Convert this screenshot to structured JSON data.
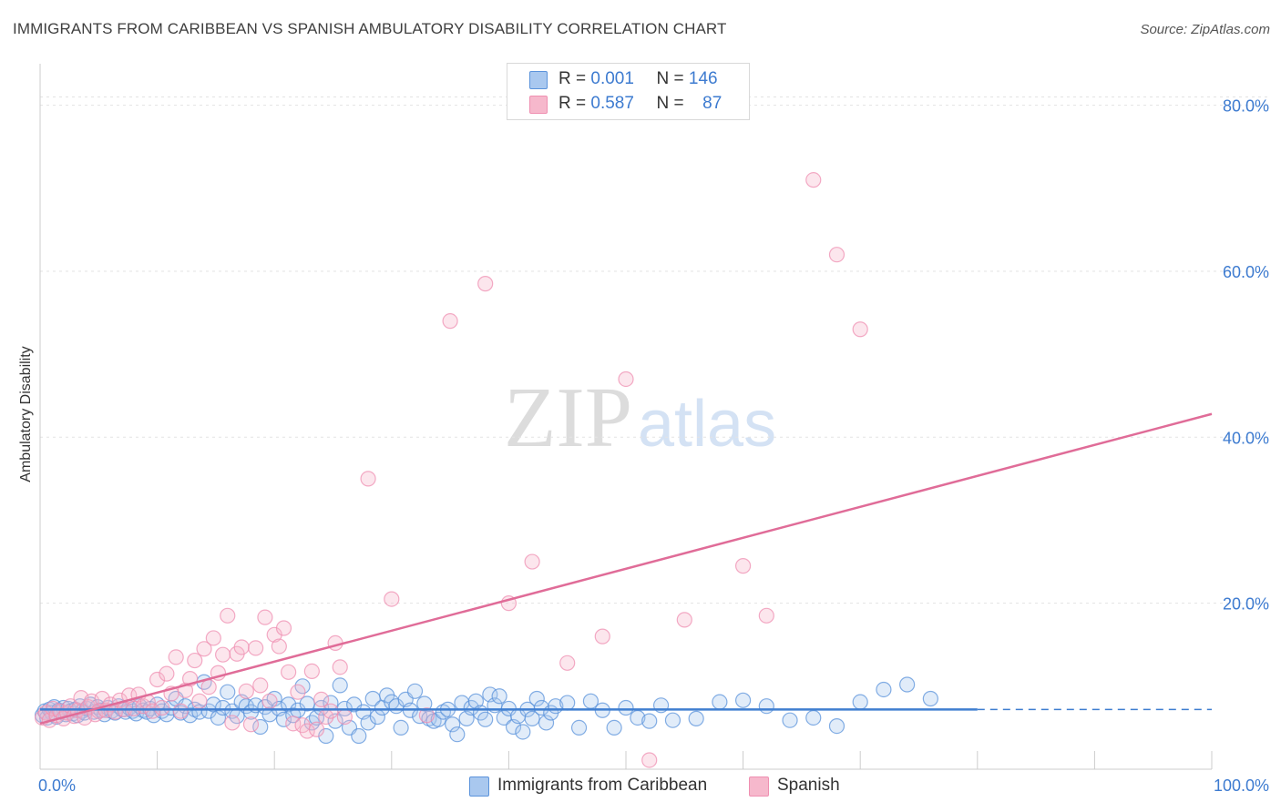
{
  "header": {
    "title": "IMMIGRANTS FROM CARIBBEAN VS SPANISH AMBULATORY DISABILITY CORRELATION CHART",
    "source": "Source: ZipAtlas.com"
  },
  "watermark": {
    "part1": "ZIP",
    "part2": "atlas"
  },
  "legend": {
    "rows": [
      {
        "r_label": "R =",
        "r_value": "0.001",
        "n_label": "N =",
        "n_value": "146",
        "color": "#a9c8ef"
      },
      {
        "r_label": "R =",
        "r_value": "0.587",
        "n_label": "N =",
        "n_value": "87",
        "color": "#f6b8cc"
      }
    ]
  },
  "bottom_legend": [
    {
      "label": "Immigrants from Caribbean",
      "color": "#a9c8ef"
    },
    {
      "label": "Spanish",
      "color": "#f6b8cc"
    }
  ],
  "chart_data": {
    "type": "scatter",
    "ylabel": "Ambulatory Disability",
    "xlim": [
      0,
      100
    ],
    "ylim": [
      0,
      85
    ],
    "x_tick_labels": [
      {
        "value": 0,
        "label": "0.0%"
      },
      {
        "value": 100,
        "label": "100.0%"
      }
    ],
    "y_tick_labels": [
      {
        "value": 20,
        "label": "20.0%"
      },
      {
        "value": 40,
        "label": "40.0%"
      },
      {
        "value": 60,
        "label": "60.0%"
      },
      {
        "value": 80,
        "label": "80.0%"
      }
    ],
    "x_minor_ticks": [
      10,
      20,
      30,
      40,
      50,
      60,
      70,
      80,
      90,
      100
    ],
    "y_gridlines": [
      20,
      40,
      60,
      80
    ],
    "series": [
      {
        "name": "Immigrants from Caribbean",
        "color": "#5b93db",
        "fill": "rgba(169,200,239,0.35)",
        "trend": {
          "x": [
            0,
            80
          ],
          "y": [
            7.2,
            7.2
          ],
          "dashed_extension_to": 100
        },
        "points": [
          [
            0.2,
            6.5
          ],
          [
            0.4,
            7.0
          ],
          [
            0.6,
            6.2
          ],
          [
            0.8,
            7.2
          ],
          [
            1.0,
            6.8
          ],
          [
            1.2,
            7.5
          ],
          [
            1.4,
            6.3
          ],
          [
            1.6,
            7.1
          ],
          [
            1.8,
            6.9
          ],
          [
            2.0,
            7.4
          ],
          [
            2.2,
            6.6
          ],
          [
            2.4,
            7.3
          ],
          [
            2.6,
            7.0
          ],
          [
            2.8,
            6.7
          ],
          [
            3.0,
            7.2
          ],
          [
            3.2,
            6.5
          ],
          [
            3.4,
            7.6
          ],
          [
            3.6,
            7.0
          ],
          [
            3.8,
            6.8
          ],
          [
            4.0,
            7.3
          ],
          [
            4.3,
            7.8
          ],
          [
            4.6,
            6.9
          ],
          [
            4.9,
            7.5
          ],
          [
            5.2,
            7.1
          ],
          [
            5.5,
            6.6
          ],
          [
            5.8,
            7.4
          ],
          [
            6.1,
            7.0
          ],
          [
            6.4,
            6.8
          ],
          [
            6.7,
            7.6
          ],
          [
            7.0,
            7.2
          ],
          [
            7.3,
            6.9
          ],
          [
            7.6,
            7.4
          ],
          [
            7.9,
            7.0
          ],
          [
            8.2,
            6.7
          ],
          [
            8.5,
            7.6
          ],
          [
            8.8,
            7.1
          ],
          [
            9.1,
            6.9
          ],
          [
            9.4,
            7.3
          ],
          [
            9.7,
            6.5
          ],
          [
            10.0,
            7.8
          ],
          [
            10.4,
            7.0
          ],
          [
            10.8,
            6.6
          ],
          [
            11.2,
            7.4
          ],
          [
            11.6,
            8.5
          ],
          [
            12.0,
            6.8
          ],
          [
            12.4,
            7.6
          ],
          [
            12.8,
            6.5
          ],
          [
            13.2,
            7.2
          ],
          [
            13.6,
            6.9
          ],
          [
            14.0,
            10.5
          ],
          [
            14.4,
            7.0
          ],
          [
            14.8,
            7.8
          ],
          [
            15.2,
            6.2
          ],
          [
            15.6,
            7.4
          ],
          [
            16.0,
            9.3
          ],
          [
            16.4,
            7.0
          ],
          [
            16.8,
            6.4
          ],
          [
            17.2,
            8.1
          ],
          [
            17.6,
            7.6
          ],
          [
            18.0,
            6.9
          ],
          [
            18.4,
            7.7
          ],
          [
            18.8,
            5.1
          ],
          [
            19.2,
            7.5
          ],
          [
            19.6,
            6.6
          ],
          [
            20.0,
            8.5
          ],
          [
            20.4,
            7.3
          ],
          [
            20.8,
            6.0
          ],
          [
            21.2,
            7.8
          ],
          [
            21.6,
            6.5
          ],
          [
            22.0,
            7.1
          ],
          [
            22.4,
            10.0
          ],
          [
            22.8,
            7.9
          ],
          [
            23.2,
            5.6
          ],
          [
            23.6,
            6.2
          ],
          [
            24.0,
            7.4
          ],
          [
            24.4,
            4.0
          ],
          [
            24.8,
            8.0
          ],
          [
            25.2,
            5.8
          ],
          [
            25.6,
            10.1
          ],
          [
            26.0,
            7.3
          ],
          [
            26.4,
            5.0
          ],
          [
            26.8,
            7.8
          ],
          [
            27.2,
            4.0
          ],
          [
            27.6,
            6.9
          ],
          [
            28.0,
            5.6
          ],
          [
            28.4,
            8.5
          ],
          [
            28.8,
            6.3
          ],
          [
            29.2,
            7.4
          ],
          [
            29.6,
            8.9
          ],
          [
            30.0,
            8.1
          ],
          [
            30.4,
            7.6
          ],
          [
            30.8,
            5.0
          ],
          [
            31.2,
            8.4
          ],
          [
            31.6,
            7.1
          ],
          [
            32.0,
            9.4
          ],
          [
            32.4,
            6.4
          ],
          [
            32.8,
            7.9
          ],
          [
            33.2,
            6.1
          ],
          [
            33.6,
            5.8
          ],
          [
            34.0,
            6.0
          ],
          [
            34.4,
            6.9
          ],
          [
            34.8,
            7.2
          ],
          [
            35.2,
            5.4
          ],
          [
            35.6,
            4.2
          ],
          [
            36.0,
            8.0
          ],
          [
            36.4,
            6.1
          ],
          [
            36.8,
            7.4
          ],
          [
            37.2,
            8.2
          ],
          [
            37.6,
            6.8
          ],
          [
            38.0,
            6.0
          ],
          [
            38.4,
            9.0
          ],
          [
            38.8,
            7.7
          ],
          [
            39.2,
            8.8
          ],
          [
            39.6,
            6.2
          ],
          [
            40.0,
            7.3
          ],
          [
            40.4,
            5.1
          ],
          [
            40.8,
            6.4
          ],
          [
            41.2,
            4.5
          ],
          [
            41.6,
            7.2
          ],
          [
            42.0,
            6.1
          ],
          [
            42.4,
            8.5
          ],
          [
            42.8,
            7.4
          ],
          [
            43.2,
            5.6
          ],
          [
            43.6,
            6.8
          ],
          [
            44.0,
            7.6
          ],
          [
            45.0,
            8.0
          ],
          [
            46.0,
            5.0
          ],
          [
            47.0,
            8.2
          ],
          [
            48.0,
            7.1
          ],
          [
            49.0,
            5.0
          ],
          [
            50.0,
            7.4
          ],
          [
            51.0,
            6.2
          ],
          [
            52.0,
            5.8
          ],
          [
            53.0,
            7.7
          ],
          [
            54.0,
            5.9
          ],
          [
            56.0,
            6.1
          ],
          [
            58.0,
            8.1
          ],
          [
            60.0,
            8.3
          ],
          [
            62.0,
            7.6
          ],
          [
            64.0,
            5.9
          ],
          [
            66.0,
            6.2
          ],
          [
            68.0,
            5.2
          ],
          [
            70.0,
            8.1
          ],
          [
            72.0,
            9.6
          ],
          [
            74.0,
            10.2
          ],
          [
            76.0,
            8.5
          ]
        ]
      },
      {
        "name": "Spanish",
        "color": "#ef8fb1",
        "fill": "rgba(246,184,204,0.35)",
        "trend": {
          "x": [
            0,
            100
          ],
          "y": [
            5.5,
            42.8
          ]
        },
        "points": [
          [
            0.2,
            6.2
          ],
          [
            0.5,
            6.8
          ],
          [
            0.8,
            5.9
          ],
          [
            1.1,
            7.3
          ],
          [
            1.4,
            6.5
          ],
          [
            1.7,
            7.0
          ],
          [
            2.0,
            6.1
          ],
          [
            2.3,
            6.8
          ],
          [
            2.6,
            7.6
          ],
          [
            2.9,
            6.4
          ],
          [
            3.2,
            7.1
          ],
          [
            3.5,
            8.6
          ],
          [
            3.8,
            6.2
          ],
          [
            4.1,
            7.5
          ],
          [
            4.4,
            8.2
          ],
          [
            4.7,
            6.6
          ],
          [
            5.0,
            7.0
          ],
          [
            5.3,
            8.5
          ],
          [
            5.6,
            7.1
          ],
          [
            6.0,
            7.8
          ],
          [
            6.4,
            6.9
          ],
          [
            6.8,
            8.3
          ],
          [
            7.2,
            7.2
          ],
          [
            7.6,
            8.9
          ],
          [
            8.0,
            7.3
          ],
          [
            8.4,
            9.0
          ],
          [
            8.8,
            7.6
          ],
          [
            9.2,
            8.1
          ],
          [
            9.6,
            7.0
          ],
          [
            10.0,
            10.8
          ],
          [
            10.4,
            7.4
          ],
          [
            10.8,
            11.5
          ],
          [
            11.2,
            9.1
          ],
          [
            11.6,
            13.5
          ],
          [
            12.0,
            7.0
          ],
          [
            12.4,
            9.5
          ],
          [
            12.8,
            10.9
          ],
          [
            13.2,
            13.1
          ],
          [
            13.6,
            8.2
          ],
          [
            14.0,
            14.5
          ],
          [
            14.4,
            9.9
          ],
          [
            14.8,
            15.8
          ],
          [
            15.2,
            11.6
          ],
          [
            15.6,
            13.8
          ],
          [
            16.0,
            18.5
          ],
          [
            16.4,
            5.6
          ],
          [
            16.8,
            13.9
          ],
          [
            17.2,
            14.7
          ],
          [
            17.6,
            9.4
          ],
          [
            18.0,
            5.4
          ],
          [
            18.4,
            14.6
          ],
          [
            18.8,
            10.1
          ],
          [
            19.2,
            18.3
          ],
          [
            19.6,
            8.2
          ],
          [
            20.0,
            16.2
          ],
          [
            20.4,
            14.8
          ],
          [
            20.8,
            17.0
          ],
          [
            21.2,
            11.7
          ],
          [
            21.6,
            5.5
          ],
          [
            22.0,
            9.3
          ],
          [
            22.4,
            5.3
          ],
          [
            22.8,
            4.6
          ],
          [
            23.2,
            11.8
          ],
          [
            23.6,
            4.8
          ],
          [
            24.0,
            8.4
          ],
          [
            24.4,
            6.3
          ],
          [
            24.8,
            7.0
          ],
          [
            25.2,
            15.2
          ],
          [
            25.6,
            12.3
          ],
          [
            26.0,
            6.3
          ],
          [
            28.0,
            35.0
          ],
          [
            30.0,
            20.5
          ],
          [
            33.0,
            6.5
          ],
          [
            35.0,
            54.0
          ],
          [
            38.0,
            58.5
          ],
          [
            40.0,
            20.0
          ],
          [
            42.0,
            25.0
          ],
          [
            45.0,
            12.8
          ],
          [
            48.0,
            16.0
          ],
          [
            50.0,
            47.0
          ],
          [
            52.0,
            1.1
          ],
          [
            55.0,
            18.0
          ],
          [
            60.0,
            24.5
          ],
          [
            62.0,
            18.5
          ],
          [
            66.0,
            71.0
          ],
          [
            68.0,
            62.0
          ],
          [
            70.0,
            53.0
          ]
        ]
      }
    ]
  }
}
